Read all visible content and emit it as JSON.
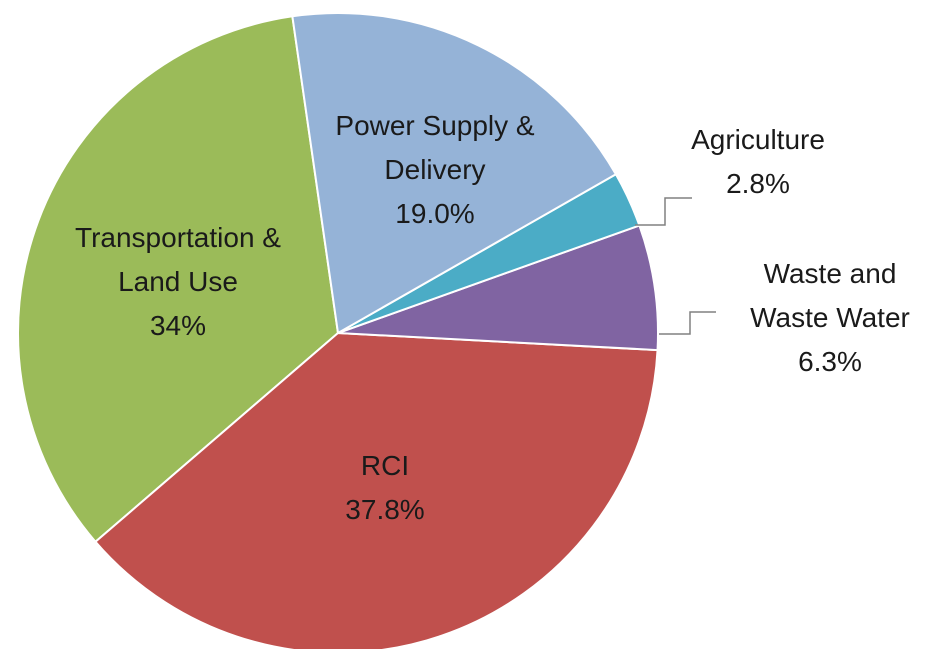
{
  "chart_data": {
    "type": "pie",
    "categories": [
      "Power Supply & Delivery",
      "Agriculture",
      "Waste and Waste Water",
      "RCI",
      "Transportation & Land Use"
    ],
    "values": [
      19.0,
      2.8,
      6.3,
      37.8,
      34
    ],
    "value_labels": [
      "19.0%",
      "2.8%",
      "6.3%",
      "37.8%",
      "34%"
    ],
    "colors": [
      "#95b3d7",
      "#4bacc6",
      "#8064a2",
      "#c0504d",
      "#9bbb59"
    ]
  }
}
